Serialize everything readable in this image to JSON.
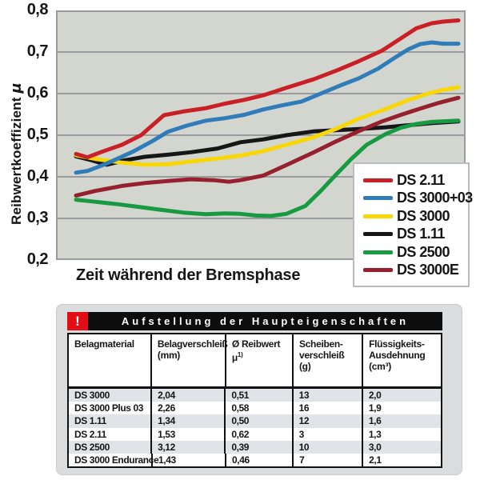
{
  "chart": {
    "ylabel_main": "Reibwertkoeffizient ",
    "ylabel_symbol": "μ",
    "xlabel": "Zeit während der Bremsphase"
  },
  "chart_data": {
    "type": "line",
    "title": "",
    "xlabel": "Zeit während der Bremsphase",
    "ylabel": "Reibwertkoeffizient μ",
    "ylim": [
      0.2,
      0.8
    ],
    "y_ticks": [
      0.8,
      0.7,
      0.6,
      0.5,
      0.4,
      0.3,
      0.2
    ],
    "y_tick_labels": [
      "0,8",
      "0,7",
      "0,6",
      "0,5",
      "0,4",
      "0,3",
      "0,2"
    ],
    "x_axis_ticks": "none (qualitative time axis)",
    "grid": "horizontal",
    "plot_bg": "#d3d6cf",
    "grid_color": "#999b9c",
    "legend_position": "bottom-right",
    "series": [
      {
        "name": "DS 2.11",
        "color": "#c92027",
        "points": [
          [
            0,
            0.455
          ],
          [
            0.03,
            0.447
          ],
          [
            0.07,
            0.461
          ],
          [
            0.12,
            0.477
          ],
          [
            0.17,
            0.5
          ],
          [
            0.23,
            0.548
          ],
          [
            0.28,
            0.557
          ],
          [
            0.34,
            0.565
          ],
          [
            0.39,
            0.576
          ],
          [
            0.44,
            0.585
          ],
          [
            0.49,
            0.596
          ],
          [
            0.55,
            0.614
          ],
          [
            0.62,
            0.634
          ],
          [
            0.68,
            0.655
          ],
          [
            0.74,
            0.678
          ],
          [
            0.8,
            0.703
          ],
          [
            0.85,
            0.733
          ],
          [
            0.89,
            0.757
          ],
          [
            0.93,
            0.769
          ],
          [
            0.96,
            0.773
          ],
          [
            1,
            0.776
          ]
        ]
      },
      {
        "name": "DS 3000+03",
        "color": "#2f7cb9",
        "points": [
          [
            0,
            0.41
          ],
          [
            0.03,
            0.414
          ],
          [
            0.07,
            0.428
          ],
          [
            0.1,
            0.44
          ],
          [
            0.15,
            0.461
          ],
          [
            0.2,
            0.486
          ],
          [
            0.24,
            0.508
          ],
          [
            0.29,
            0.523
          ],
          [
            0.34,
            0.535
          ],
          [
            0.39,
            0.541
          ],
          [
            0.44,
            0.549
          ],
          [
            0.49,
            0.562
          ],
          [
            0.54,
            0.572
          ],
          [
            0.59,
            0.581
          ],
          [
            0.64,
            0.6
          ],
          [
            0.69,
            0.619
          ],
          [
            0.74,
            0.637
          ],
          [
            0.79,
            0.66
          ],
          [
            0.84,
            0.69
          ],
          [
            0.87,
            0.707
          ],
          [
            0.9,
            0.719
          ],
          [
            0.93,
            0.723
          ],
          [
            0.96,
            0.72
          ],
          [
            1,
            0.72
          ]
        ]
      },
      {
        "name": "DS 3000",
        "color": "#f9d606",
        "points": [
          [
            0,
            0.452
          ],
          [
            0.05,
            0.443
          ],
          [
            0.12,
            0.434
          ],
          [
            0.18,
            0.429
          ],
          [
            0.24,
            0.43
          ],
          [
            0.3,
            0.437
          ],
          [
            0.37,
            0.444
          ],
          [
            0.43,
            0.451
          ],
          [
            0.49,
            0.462
          ],
          [
            0.55,
            0.477
          ],
          [
            0.62,
            0.495
          ],
          [
            0.68,
            0.515
          ],
          [
            0.74,
            0.54
          ],
          [
            0.81,
            0.563
          ],
          [
            0.87,
            0.585
          ],
          [
            0.92,
            0.6
          ],
          [
            0.96,
            0.609
          ],
          [
            1,
            0.615
          ]
        ]
      },
      {
        "name": "DS 1.11",
        "color": "#161616",
        "points": [
          [
            0,
            0.449
          ],
          [
            0.04,
            0.44
          ],
          [
            0.08,
            0.429
          ],
          [
            0.13,
            0.44
          ],
          [
            0.18,
            0.448
          ],
          [
            0.24,
            0.453
          ],
          [
            0.3,
            0.459
          ],
          [
            0.37,
            0.468
          ],
          [
            0.43,
            0.483
          ],
          [
            0.49,
            0.49
          ],
          [
            0.55,
            0.5
          ],
          [
            0.62,
            0.509
          ],
          [
            0.68,
            0.512
          ],
          [
            0.74,
            0.515
          ],
          [
            0.81,
            0.519
          ],
          [
            0.87,
            0.524
          ],
          [
            0.93,
            0.529
          ],
          [
            1,
            0.533
          ]
        ]
      },
      {
        "name": "DS 2500",
        "color": "#189a42",
        "points": [
          [
            0,
            0.345
          ],
          [
            0.05,
            0.34
          ],
          [
            0.11,
            0.334
          ],
          [
            0.16,
            0.328
          ],
          [
            0.22,
            0.321
          ],
          [
            0.28,
            0.314
          ],
          [
            0.34,
            0.31
          ],
          [
            0.39,
            0.312
          ],
          [
            0.43,
            0.311
          ],
          [
            0.47,
            0.307
          ],
          [
            0.51,
            0.306
          ],
          [
            0.55,
            0.311
          ],
          [
            0.6,
            0.33
          ],
          [
            0.64,
            0.366
          ],
          [
            0.68,
            0.405
          ],
          [
            0.72,
            0.443
          ],
          [
            0.76,
            0.477
          ],
          [
            0.81,
            0.503
          ],
          [
            0.85,
            0.518
          ],
          [
            0.89,
            0.527
          ],
          [
            0.93,
            0.532
          ],
          [
            1,
            0.535
          ]
        ]
      },
      {
        "name": "DS 3000E",
        "color": "#97202f",
        "points": [
          [
            0,
            0.355
          ],
          [
            0.05,
            0.366
          ],
          [
            0.12,
            0.378
          ],
          [
            0.18,
            0.385
          ],
          [
            0.24,
            0.39
          ],
          [
            0.3,
            0.394
          ],
          [
            0.36,
            0.392
          ],
          [
            0.4,
            0.388
          ],
          [
            0.43,
            0.392
          ],
          [
            0.49,
            0.403
          ],
          [
            0.55,
            0.428
          ],
          [
            0.62,
            0.458
          ],
          [
            0.68,
            0.485
          ],
          [
            0.74,
            0.51
          ],
          [
            0.8,
            0.533
          ],
          [
            0.85,
            0.549
          ],
          [
            0.9,
            0.564
          ],
          [
            0.95,
            0.578
          ],
          [
            1,
            0.59
          ]
        ]
      }
    ],
    "draw_order": [
      "DS 1.11",
      "DS 3000",
      "DS 3000E",
      "DS 2500",
      "DS 3000+03",
      "DS 2.11"
    ]
  },
  "table": {
    "banner": {
      "icon": "!",
      "title": "Aufstellung der Haupteigenschaften"
    },
    "columns": [
      {
        "lines": [
          "Belagmaterial"
        ],
        "width": 105
      },
      {
        "lines": [
          "Belagverschleiß",
          "(mm)"
        ],
        "width": 93
      },
      {
        "lines": [
          "Ø Reibwert μ"
        ],
        "sup": "1)",
        "width": 85
      },
      {
        "lines": [
          "Scheiben-",
          "verschleiß",
          "(g)"
        ],
        "width": 88
      },
      {
        "lines": [
          "Flüssigkeits-",
          "Ausdehnung",
          "(cm³)"
        ],
        "width": 98
      }
    ],
    "rows": [
      [
        "DS 3000",
        "2,04",
        "0,51",
        "13",
        "2,0"
      ],
      [
        "DS 3000 Plus 03",
        "2,26",
        "0,58",
        "16",
        "1,9"
      ],
      [
        "DS 1.11",
        "1,34",
        "0,50",
        "12",
        "1,6"
      ],
      [
        "DS 2.11",
        "1,53",
        "0,62",
        "3",
        "1,3"
      ],
      [
        "DS 2500",
        "3,12",
        "0,39",
        "10",
        "3,0"
      ],
      [
        "DS 3000 Endurance",
        "1,43",
        "0,46",
        "7",
        "2,1"
      ]
    ],
    "stripe_color": "#e0e3e7"
  }
}
